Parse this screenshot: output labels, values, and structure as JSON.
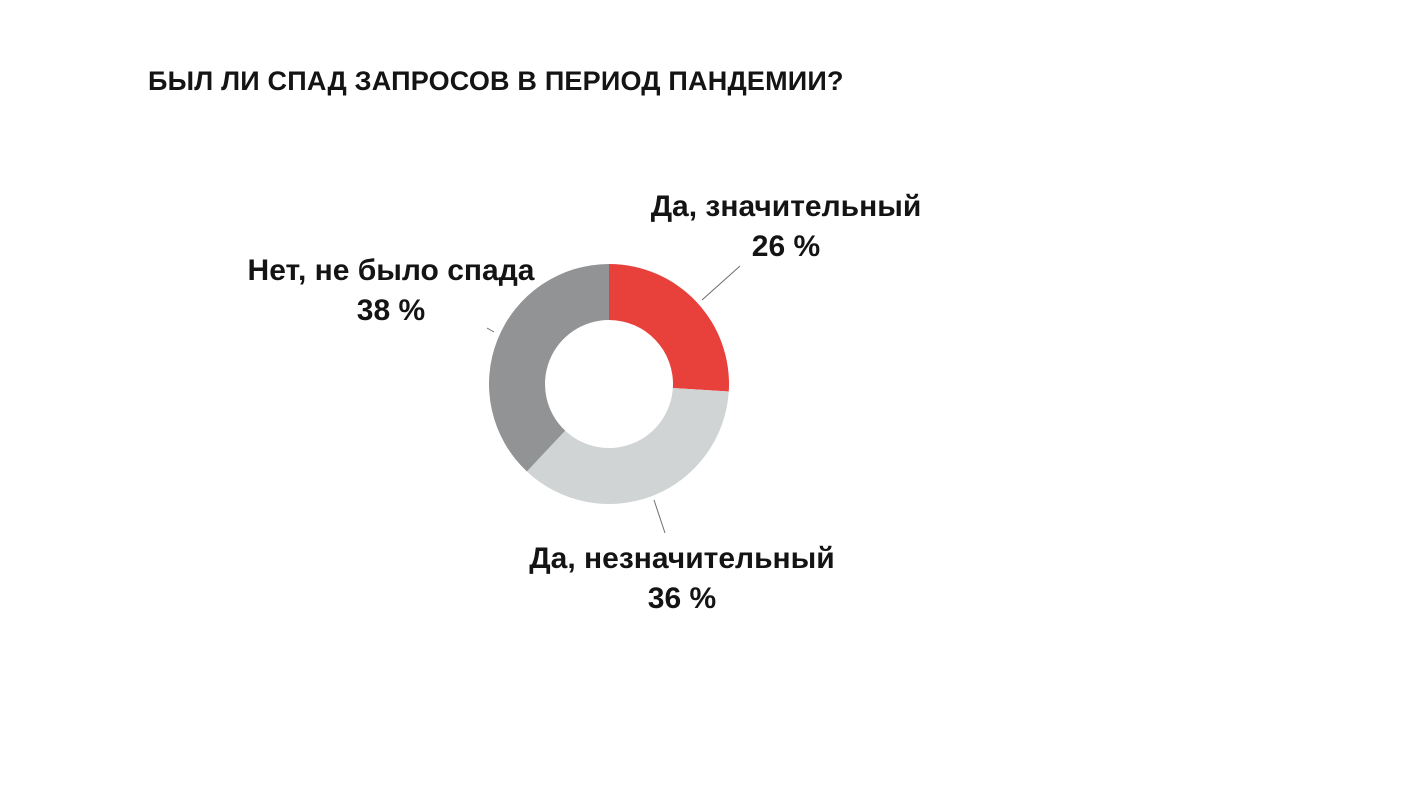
{
  "chart_data": {
    "type": "pie",
    "subtype": "donut",
    "title": "БЫЛ ЛИ СПАД ЗАПРОСОВ В ПЕРИОД ПАНДЕМИИ?",
    "unit": "%",
    "slices": [
      {
        "name": "Да, значительный",
        "value": 26,
        "value_label": "26 %",
        "color": "#e8413c"
      },
      {
        "name": "Да, незначительный",
        "value": 36,
        "value_label": "36 %",
        "color": "#d0d4d4"
      },
      {
        "name": "Нет, не было спада",
        "value": 38,
        "value_label": "38 %",
        "color": "#929394"
      }
    ]
  }
}
